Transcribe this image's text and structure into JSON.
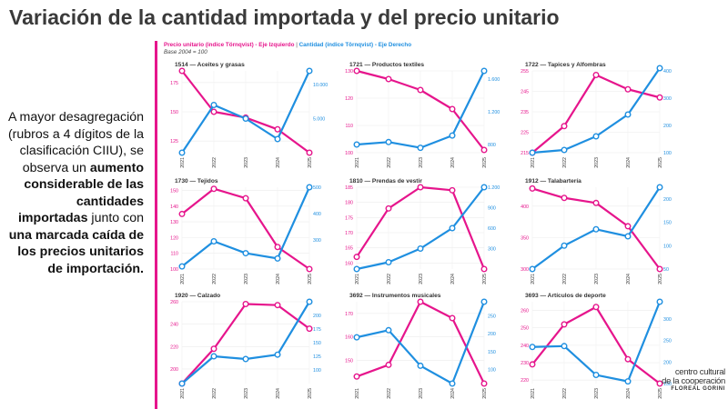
{
  "header": {
    "title": "Variación de la cantidad importada y del precio unitario"
  },
  "side_text": {
    "p1": "A mayor desagregación (rubros a 4 dígitos de la clasificación CIIU), se observa un ",
    "b1": "aumento considerable de las cantidades importadas",
    "p2": " junto con ",
    "b2": "una marcada caída de los precios unitarios de importación."
  },
  "legend": {
    "price": "Precio unitario (índice Törnqvist) - Eje Izquierdo",
    "separator": "|",
    "quantity": "Cantidad (índice Törnqvist) - Eje Derecho",
    "base": "Base 2004 = 100"
  },
  "colors": {
    "price": "#e6158c",
    "quantity": "#1f8fe0",
    "accent_bar": "#e6158c"
  },
  "logo": {
    "line1": "centro cultural",
    "line2": "de la cooperación",
    "line3": "FLOREAL GORINI"
  },
  "chart_data": [
    {
      "type": "line",
      "title": "1514 — Aceites y grasas",
      "categories": [
        "2021",
        "2022",
        "2023",
        "2024",
        "2025"
      ],
      "series": [
        {
          "name": "Precio unitario (índice Törnqvist)",
          "axis": "left",
          "values": [
            185,
            150,
            145,
            135,
            115
          ]
        },
        {
          "name": "Cantidad (índice Törnqvist)",
          "axis": "right",
          "values": [
            0,
            7000,
            5000,
            2000,
            12000
          ]
        }
      ],
      "left_ticks": [
        125,
        150,
        175
      ],
      "left_range": [
        115,
        185
      ],
      "right_ticks": [
        5000,
        10000
      ],
      "right_range": [
        0,
        12000
      ]
    },
    {
      "type": "line",
      "title": "1721 — Productos textiles",
      "categories": [
        "2021",
        "2022",
        "2023",
        "2024",
        "2025"
      ],
      "series": [
        {
          "name": "Precio unitario (índice Törnqvist)",
          "axis": "left",
          "values": [
            130,
            127,
            123,
            116,
            101
          ]
        },
        {
          "name": "Cantidad (índice Törnqvist)",
          "axis": "right",
          "values": [
            800,
            830,
            760,
            910,
            1700
          ]
        }
      ],
      "left_ticks": [
        100,
        110,
        120,
        130
      ],
      "left_range": [
        100,
        130
      ],
      "right_ticks": [
        800,
        1200,
        1600
      ],
      "right_range": [
        700,
        1700
      ]
    },
    {
      "type": "line",
      "title": "1722 — Tapices y Alfombras",
      "categories": [
        "2021",
        "2022",
        "2023",
        "2024",
        "2025"
      ],
      "series": [
        {
          "name": "Precio unitario (índice Törnqvist)",
          "axis": "left",
          "values": [
            215,
            228,
            253,
            246,
            242
          ]
        },
        {
          "name": "Cantidad (índice Törnqvist)",
          "axis": "right",
          "values": [
            100,
            110,
            160,
            240,
            410
          ]
        }
      ],
      "left_ticks": [
        215,
        225,
        235,
        245,
        255
      ],
      "left_range": [
        215,
        255
      ],
      "right_ticks": [
        100,
        200,
        300,
        400
      ],
      "right_range": [
        100,
        400
      ]
    },
    {
      "type": "line",
      "title": "1730 — Tejidos",
      "categories": [
        "2021",
        "2022",
        "2023",
        "2024",
        "2025"
      ],
      "series": [
        {
          "name": "Precio unitario (índice Törnqvist)",
          "axis": "left",
          "values": [
            135,
            151,
            145,
            114,
            100
          ]
        },
        {
          "name": "Cantidad (índice Törnqvist)",
          "axis": "right",
          "values": [
            200,
            295,
            250,
            230,
            500
          ]
        }
      ],
      "left_ticks": [
        100,
        110,
        120,
        130,
        140,
        150
      ],
      "left_range": [
        100,
        152
      ],
      "right_ticks": [
        300,
        400,
        500
      ],
      "right_range": [
        190,
        500
      ]
    },
    {
      "type": "line",
      "title": "1810 — Prendas de vestir",
      "categories": [
        "2021",
        "2022",
        "2023",
        "2024",
        "2025"
      ],
      "series": [
        {
          "name": "Precio unitario (índice Törnqvist)",
          "axis": "left",
          "values": [
            162,
            178,
            185,
            184,
            158
          ]
        },
        {
          "name": "Cantidad (índice Törnqvist)",
          "axis": "right",
          "values": [
            0,
            100,
            300,
            600,
            1200
          ]
        }
      ],
      "left_ticks": [
        160,
        165,
        170,
        175,
        180,
        185
      ],
      "left_range": [
        158,
        185
      ],
      "right_ticks": [
        300,
        600,
        900,
        1200
      ],
      "right_range": [
        0,
        1200
      ]
    },
    {
      "type": "line",
      "title": "1912 — Talabartería",
      "categories": [
        "2021",
        "2022",
        "2023",
        "2024",
        "2025"
      ],
      "series": [
        {
          "name": "Precio unitario (índice Törnqvist)",
          "axis": "left",
          "values": [
            428,
            413,
            405,
            368,
            300
          ]
        },
        {
          "name": "Cantidad (índice Törnqvist)",
          "axis": "right",
          "values": [
            50,
            100,
            135,
            120,
            225
          ]
        }
      ],
      "left_ticks": [
        300,
        350,
        400
      ],
      "left_range": [
        300,
        430
      ],
      "right_ticks": [
        50,
        100,
        150,
        200
      ],
      "right_range": [
        50,
        225
      ]
    },
    {
      "type": "line",
      "title": "1920 — Calzado",
      "categories": [
        "2021",
        "2022",
        "2023",
        "2024",
        "2025"
      ],
      "series": [
        {
          "name": "Precio unitario (índice Törnqvist)",
          "axis": "left",
          "values": [
            187,
            218,
            258,
            257,
            236
          ]
        },
        {
          "name": "Cantidad (índice Törnqvist)",
          "axis": "right",
          "values": [
            75,
            125,
            120,
            128,
            225
          ]
        }
      ],
      "left_ticks": [
        200,
        220,
        240,
        260
      ],
      "left_range": [
        187,
        260
      ],
      "right_ticks": [
        100,
        125,
        150,
        175,
        200
      ],
      "right_range": [
        75,
        225
      ]
    },
    {
      "type": "line",
      "title": "3692 — Instrumentos musicales",
      "categories": [
        "2021",
        "2022",
        "2023",
        "2024",
        "2025"
      ],
      "series": [
        {
          "name": "Precio unitario (índice Törnqvist)",
          "axis": "left",
          "values": [
            143,
            148,
            175,
            168,
            140
          ]
        },
        {
          "name": "Cantidad (índice Törnqvist)",
          "axis": "right",
          "values": [
            190,
            210,
            110,
            60,
            290
          ]
        }
      ],
      "left_ticks": [
        150,
        160,
        170
      ],
      "left_range": [
        140,
        175
      ],
      "right_ticks": [
        100,
        150,
        200,
        250
      ],
      "right_range": [
        60,
        290
      ]
    },
    {
      "type": "line",
      "title": "3693 — Artículos de deporte",
      "categories": [
        "2021",
        "2022",
        "2023",
        "2024",
        "2025"
      ],
      "series": [
        {
          "name": "Precio unitario (índice Törnqvist)",
          "axis": "left",
          "values": [
            229,
            252,
            262,
            232,
            218
          ]
        },
        {
          "name": "Cantidad (índice Törnqvist)",
          "axis": "right",
          "values": [
            235,
            237,
            170,
            155,
            340
          ]
        }
      ],
      "left_ticks": [
        220,
        230,
        240,
        250,
        260
      ],
      "left_range": [
        218,
        265
      ],
      "right_ticks": [
        150,
        200,
        250,
        300
      ],
      "right_range": [
        150,
        340
      ]
    }
  ]
}
